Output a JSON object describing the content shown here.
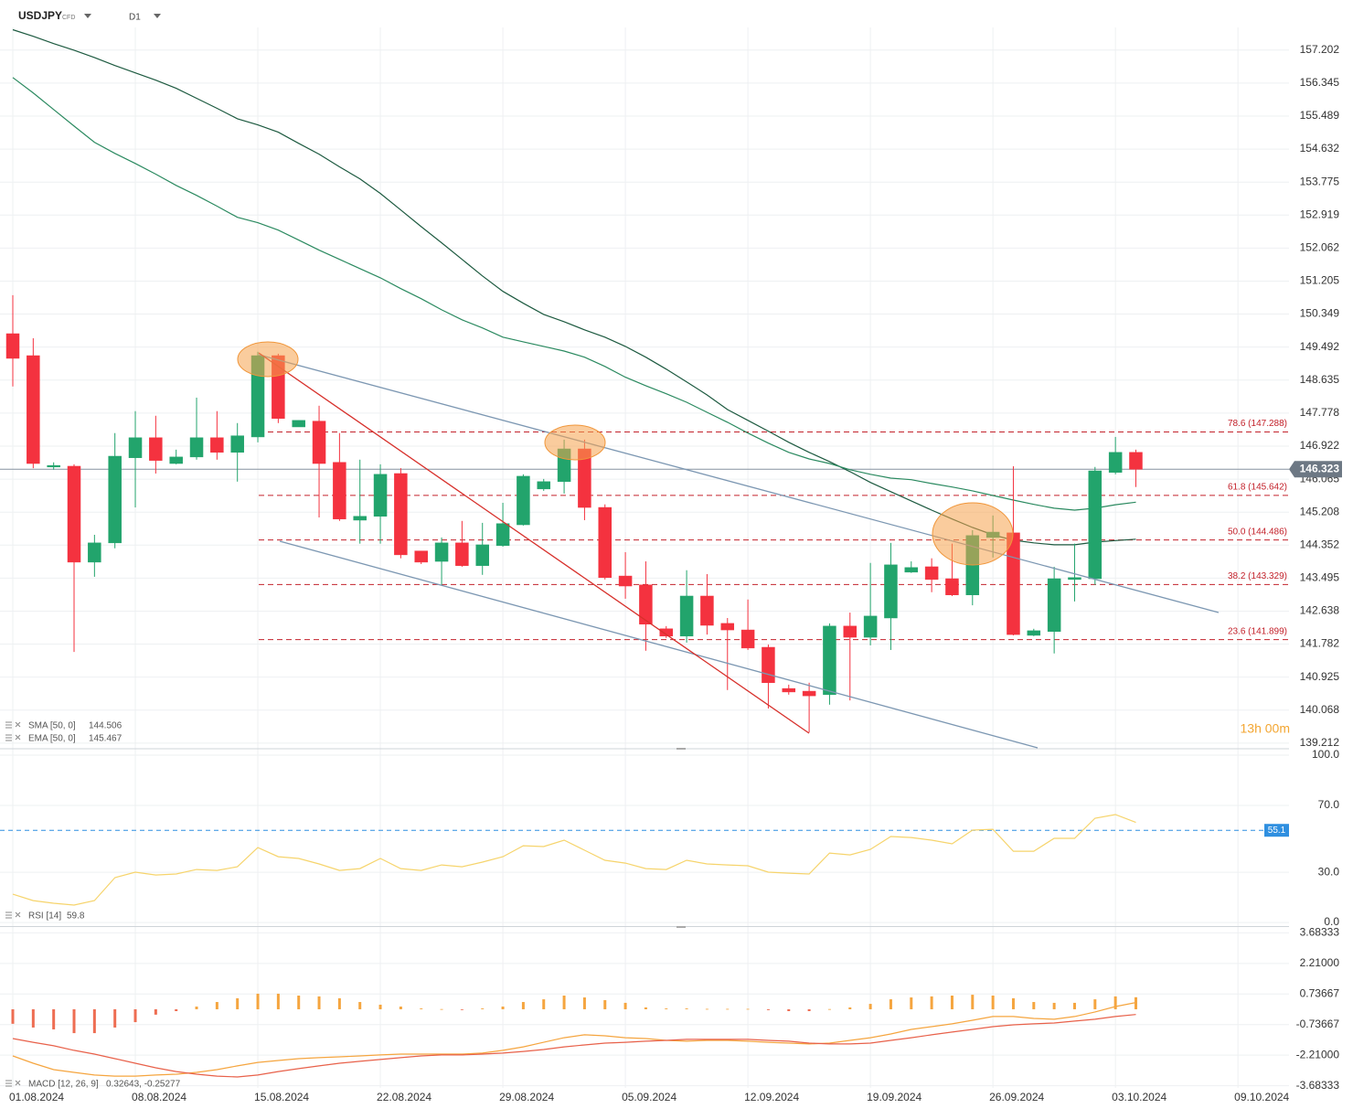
{
  "header": {
    "symbol": "USDJPY",
    "instrument_type": "CFD",
    "timeframe": "D1"
  },
  "chart_data": [
    {
      "type": "candlestick",
      "up_color": "#22a46c",
      "down_color": "#f4323f",
      "xlim": [
        -0.627,
        62.5
      ],
      "xticks": [
        {
          "value": 0,
          "label": "01.08.2024"
        },
        {
          "value": 6,
          "label": "08.08.2024"
        },
        {
          "value": 12,
          "label": "15.08.2024"
        },
        {
          "value": 18,
          "label": "22.08.2024"
        },
        {
          "value": 24,
          "label": "29.08.2024"
        },
        {
          "value": 30,
          "label": "05.09.2024"
        },
        {
          "value": 36,
          "label": "12.09.2024"
        },
        {
          "value": 42,
          "label": "19.09.2024"
        },
        {
          "value": 48,
          "label": "26.09.2024"
        },
        {
          "value": 54,
          "label": "03.10.2024"
        },
        {
          "value": 60,
          "label": "09.10.2024"
        }
      ],
      "ylim": [
        139.09,
        157.79
      ],
      "yticks": [
        157.202,
        156.345,
        155.489,
        154.632,
        153.775,
        152.919,
        152.062,
        151.205,
        150.349,
        149.492,
        148.635,
        147.778,
        146.922,
        146.065,
        145.208,
        144.352,
        143.495,
        142.638,
        141.782,
        140.925,
        140.068,
        139.212
      ],
      "grid": true,
      "last_price": 146.323,
      "countdown": "13h 00m",
      "candles": [
        {
          "open": 149.84,
          "high": 150.84,
          "low": 148.47,
          "close": 149.2
        },
        {
          "open": 149.27,
          "high": 149.72,
          "low": 146.35,
          "close": 146.47
        },
        {
          "open": 146.38,
          "high": 146.5,
          "low": 146.31,
          "close": 146.42
        },
        {
          "open": 146.4,
          "high": 146.45,
          "low": 141.58,
          "close": 143.91
        },
        {
          "open": 143.91,
          "high": 144.62,
          "low": 143.53,
          "close": 144.41
        },
        {
          "open": 144.41,
          "high": 147.26,
          "low": 144.27,
          "close": 146.66
        },
        {
          "open": 146.62,
          "high": 147.83,
          "low": 145.33,
          "close": 147.14
        },
        {
          "open": 147.14,
          "high": 147.71,
          "low": 146.21,
          "close": 146.55
        },
        {
          "open": 146.47,
          "high": 146.83,
          "low": 146.45,
          "close": 146.64
        },
        {
          "open": 146.64,
          "high": 148.18,
          "low": 146.57,
          "close": 147.14
        },
        {
          "open": 147.14,
          "high": 147.83,
          "low": 146.57,
          "close": 146.76
        },
        {
          "open": 146.76,
          "high": 147.52,
          "low": 146.0,
          "close": 147.19
        },
        {
          "open": 147.16,
          "high": 149.37,
          "low": 147.02,
          "close": 149.27
        },
        {
          "open": 149.27,
          "high": 149.32,
          "low": 147.52,
          "close": 147.64
        },
        {
          "open": 147.42,
          "high": 147.59,
          "low": 147.42,
          "close": 147.59
        },
        {
          "open": 147.57,
          "high": 147.97,
          "low": 145.07,
          "close": 146.47
        },
        {
          "open": 146.5,
          "high": 147.26,
          "low": 144.98,
          "close": 145.03
        },
        {
          "open": 145.0,
          "high": 146.57,
          "low": 144.39,
          "close": 145.1
        },
        {
          "open": 145.1,
          "high": 146.45,
          "low": 144.39,
          "close": 146.19
        },
        {
          "open": 146.21,
          "high": 146.35,
          "low": 144.01,
          "close": 144.1
        },
        {
          "open": 144.2,
          "high": 144.2,
          "low": 143.86,
          "close": 143.91
        },
        {
          "open": 143.93,
          "high": 144.55,
          "low": 143.32,
          "close": 144.41
        },
        {
          "open": 144.41,
          "high": 144.98,
          "low": 143.79,
          "close": 143.82
        },
        {
          "open": 143.82,
          "high": 144.93,
          "low": 143.58,
          "close": 144.36
        },
        {
          "open": 144.34,
          "high": 145.45,
          "low": 144.31,
          "close": 144.91
        },
        {
          "open": 144.88,
          "high": 146.19,
          "low": 144.86,
          "close": 146.14
        },
        {
          "open": 145.81,
          "high": 146.07,
          "low": 145.76,
          "close": 146.0
        },
        {
          "open": 146.0,
          "high": 147.09,
          "low": 145.69,
          "close": 146.85
        },
        {
          "open": 146.85,
          "high": 147.09,
          "low": 145.0,
          "close": 145.33
        },
        {
          "open": 145.33,
          "high": 145.41,
          "low": 143.46,
          "close": 143.51
        },
        {
          "open": 143.55,
          "high": 144.17,
          "low": 142.96,
          "close": 143.29
        },
        {
          "open": 143.32,
          "high": 143.93,
          "low": 141.61,
          "close": 142.3
        },
        {
          "open": 142.18,
          "high": 142.25,
          "low": 141.94,
          "close": 141.99
        },
        {
          "open": 141.99,
          "high": 143.7,
          "low": 141.82,
          "close": 143.03
        },
        {
          "open": 143.03,
          "high": 143.6,
          "low": 142.03,
          "close": 142.27
        },
        {
          "open": 142.32,
          "high": 142.46,
          "low": 140.59,
          "close": 142.15
        },
        {
          "open": 142.15,
          "high": 142.94,
          "low": 141.63,
          "close": 141.68
        },
        {
          "open": 141.7,
          "high": 141.77,
          "low": 140.11,
          "close": 140.78
        },
        {
          "open": 140.63,
          "high": 140.73,
          "low": 140.47,
          "close": 140.54
        },
        {
          "open": 140.56,
          "high": 140.78,
          "low": 139.49,
          "close": 140.44
        },
        {
          "open": 140.47,
          "high": 142.32,
          "low": 140.21,
          "close": 142.25
        },
        {
          "open": 142.25,
          "high": 142.6,
          "low": 140.32,
          "close": 141.96
        },
        {
          "open": 141.96,
          "high": 143.89,
          "low": 141.75,
          "close": 142.51
        },
        {
          "open": 142.46,
          "high": 144.41,
          "low": 141.63,
          "close": 143.84
        },
        {
          "open": 143.65,
          "high": 143.93,
          "low": 143.63,
          "close": 143.77
        },
        {
          "open": 143.79,
          "high": 144.01,
          "low": 143.13,
          "close": 143.46
        },
        {
          "open": 143.48,
          "high": 144.39,
          "low": 143.03,
          "close": 143.06
        },
        {
          "open": 143.06,
          "high": 144.74,
          "low": 142.79,
          "close": 144.6
        },
        {
          "open": 144.55,
          "high": 145.12,
          "low": 144.03,
          "close": 144.69
        },
        {
          "open": 144.67,
          "high": 146.4,
          "low": 142.01,
          "close": 142.03
        },
        {
          "open": 142.01,
          "high": 142.18,
          "low": 141.99,
          "close": 142.13
        },
        {
          "open": 142.11,
          "high": 143.79,
          "low": 141.54,
          "close": 143.48
        },
        {
          "open": 143.46,
          "high": 144.39,
          "low": 142.89,
          "close": 143.51
        },
        {
          "open": 143.48,
          "high": 146.38,
          "low": 143.32,
          "close": 146.28
        },
        {
          "open": 146.24,
          "high": 147.16,
          "low": 146.19,
          "close": 146.76
        },
        {
          "open": 146.76,
          "high": 146.83,
          "low": 145.86,
          "close": 146.32
        }
      ],
      "overlays": [
        {
          "name": "SMA [50, 0]",
          "value": 144.506,
          "color": "#1d5a40",
          "values": [
            157.73,
            157.56,
            157.37,
            157.2,
            157.01,
            156.8,
            156.61,
            156.42,
            156.21,
            155.95,
            155.69,
            155.42,
            155.26,
            155.07,
            154.78,
            154.5,
            154.17,
            153.86,
            153.48,
            153.05,
            152.62,
            152.2,
            151.77,
            151.34,
            150.94,
            150.63,
            150.34,
            150.15,
            149.94,
            149.75,
            149.51,
            149.23,
            148.92,
            148.59,
            148.25,
            147.87,
            147.59,
            147.31,
            147.02,
            146.76,
            146.52,
            146.26,
            145.98,
            145.74,
            145.5,
            145.26,
            145.03,
            144.81,
            144.62,
            144.48,
            144.41,
            144.36,
            144.36,
            144.43,
            144.47,
            144.506
          ]
        },
        {
          "name": "EMA [50, 0]",
          "value": 145.467,
          "color": "#2b8a60",
          "values": [
            156.49,
            156.09,
            155.66,
            155.23,
            154.81,
            154.52,
            154.26,
            153.98,
            153.69,
            153.43,
            153.15,
            152.86,
            152.72,
            152.53,
            152.27,
            152.01,
            151.77,
            151.53,
            151.29,
            151.01,
            150.75,
            150.46,
            150.2,
            149.99,
            149.75,
            149.63,
            149.51,
            149.39,
            149.23,
            148.99,
            148.71,
            148.49,
            148.28,
            148.06,
            147.8,
            147.54,
            147.26,
            147.0,
            146.76,
            146.59,
            146.47,
            146.31,
            146.19,
            146.09,
            146.05,
            145.95,
            145.86,
            145.76,
            145.64,
            145.52,
            145.41,
            145.31,
            145.26,
            145.31,
            145.4,
            145.467
          ]
        }
      ],
      "fib_color": "#c3222b",
      "fib_levels": [
        {
          "value": 147.288,
          "label": "78.6 (147.288)"
        },
        {
          "value": 145.642,
          "label": "61.8 (145.642)"
        },
        {
          "value": 144.486,
          "label": "50.0 (144.486)"
        },
        {
          "value": 143.329,
          "label": "38.2 (143.329)"
        },
        {
          "value": 141.899,
          "label": "23.6 (141.899)"
        }
      ]
    },
    {
      "type": "line",
      "name": "RSI [14]",
      "value": 59.8,
      "color": "#f6d46c",
      "ylim": [
        -1.6,
        103.3
      ],
      "yticks": [
        {
          "value": 100,
          "label": "100.0"
        },
        {
          "value": 70,
          "label": "70.0"
        },
        {
          "value": 30,
          "label": "30.0"
        },
        {
          "value": 0,
          "label": "0.0"
        }
      ],
      "grid": true,
      "level": 55.1,
      "level_color": "#2f8fe0",
      "values": [
        16.9,
        13.1,
        11.5,
        10.4,
        13.1,
        26.8,
        30.1,
        28.4,
        29.0,
        31.7,
        31.1,
        33.3,
        44.8,
        39.3,
        38.3,
        35.0,
        31.1,
        32.2,
        38.3,
        32.2,
        31.1,
        34.4,
        33.3,
        36.1,
        39.3,
        45.9,
        45.4,
        49.2,
        43.2,
        37.2,
        35.5,
        32.2,
        31.7,
        37.2,
        35.0,
        34.4,
        33.9,
        30.1,
        29.5,
        29.0,
        41.5,
        40.4,
        43.7,
        51.4,
        50.8,
        49.2,
        47.0,
        55.2,
        55.7,
        42.6,
        42.6,
        50.3,
        50.3,
        62.3,
        64.5,
        59.8
      ]
    },
    {
      "type": "macd",
      "name": "MACD [12, 26, 9]",
      "legend_label": "0.32643, -0.25277",
      "ylim": [
        -3.79,
        3.92
      ],
      "yticks": [
        3.68333,
        {
          "value": 2.21,
          "label": "2.21000"
        },
        0.73667,
        -0.73667,
        {
          "value": -2.21,
          "label": "-2.21000"
        },
        -3.68333
      ],
      "grid": true,
      "histogram": {
        "up_color": "#f5a53f",
        "down_color": "#ee6d52",
        "values": [
          -0.7,
          -0.88,
          -0.97,
          -1.15,
          -1.15,
          -0.88,
          -0.62,
          -0.26,
          -0.09,
          0.13,
          0.35,
          0.53,
          0.75,
          0.75,
          0.66,
          0.62,
          0.53,
          0.35,
          0.22,
          0.13,
          0.04,
          0.01,
          -0.01,
          0.04,
          0.13,
          0.35,
          0.48,
          0.66,
          0.57,
          0.44,
          0.31,
          0.09,
          0.04,
          0.04,
          0.02,
          0.02,
          0.02,
          -0.04,
          -0.09,
          -0.09,
          0.01,
          0.09,
          0.26,
          0.48,
          0.57,
          0.62,
          0.66,
          0.7,
          0.66,
          0.53,
          0.35,
          0.31,
          0.31,
          0.48,
          0.62,
          0.58
        ]
      },
      "series": [
        {
          "color": "#f5a53f",
          "values": [
            -2.25,
            -2.6,
            -2.91,
            -3.04,
            -3.17,
            -3.22,
            -3.22,
            -3.17,
            -3.13,
            -3.04,
            -2.91,
            -2.73,
            -2.56,
            -2.47,
            -2.38,
            -2.33,
            -2.29,
            -2.25,
            -2.2,
            -2.16,
            -2.16,
            -2.16,
            -2.16,
            -2.11,
            -1.98,
            -1.81,
            -1.59,
            -1.37,
            -1.23,
            -1.28,
            -1.37,
            -1.41,
            -1.5,
            -1.54,
            -1.5,
            -1.5,
            -1.54,
            -1.59,
            -1.63,
            -1.67,
            -1.63,
            -1.5,
            -1.37,
            -1.19,
            -0.97,
            -0.84,
            -0.7,
            -0.53,
            -0.35,
            -0.35,
            -0.44,
            -0.48,
            -0.35,
            -0.13,
            0.13,
            0.32643
          ]
        },
        {
          "color": "#e8614a",
          "values": [
            -1.41,
            -1.59,
            -1.76,
            -1.98,
            -2.16,
            -2.38,
            -2.6,
            -2.82,
            -3.0,
            -3.13,
            -3.22,
            -3.26,
            -3.17,
            -3.0,
            -2.86,
            -2.73,
            -2.6,
            -2.51,
            -2.42,
            -2.33,
            -2.25,
            -2.2,
            -2.2,
            -2.16,
            -2.11,
            -2.03,
            -1.94,
            -1.81,
            -1.72,
            -1.63,
            -1.59,
            -1.54,
            -1.5,
            -1.45,
            -1.45,
            -1.45,
            -1.45,
            -1.5,
            -1.54,
            -1.63,
            -1.67,
            -1.67,
            -1.63,
            -1.5,
            -1.37,
            -1.23,
            -1.1,
            -0.97,
            -0.84,
            -0.75,
            -0.7,
            -0.66,
            -0.57,
            -0.48,
            -0.35,
            -0.25277
          ]
        }
      ]
    }
  ]
}
